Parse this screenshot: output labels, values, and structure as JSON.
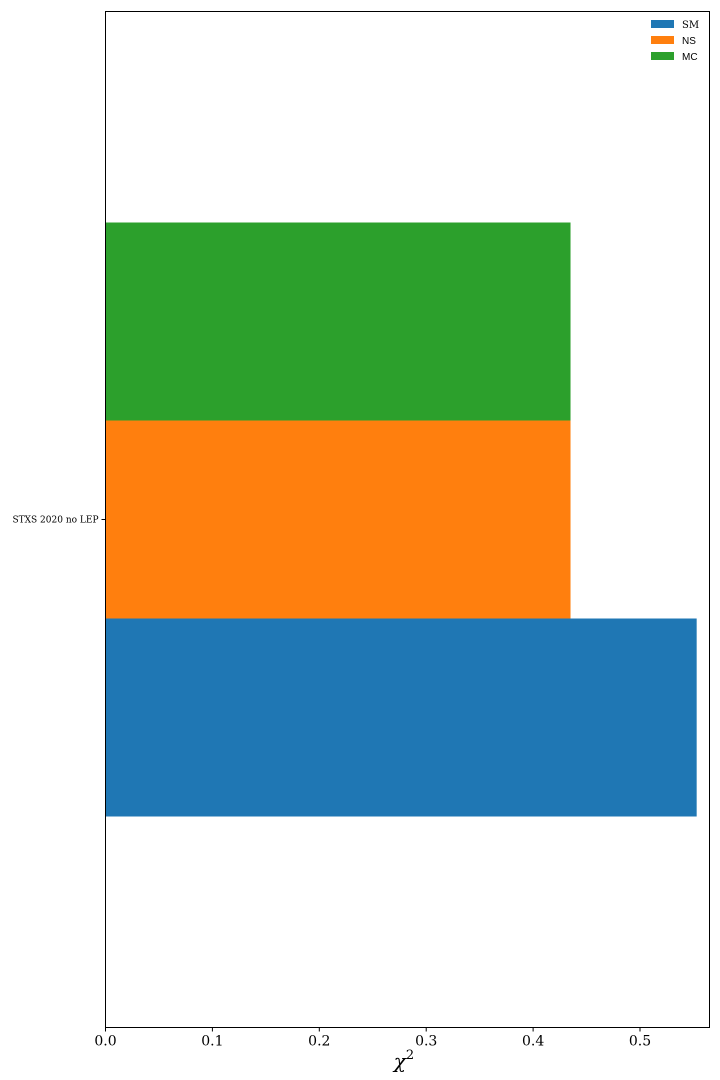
{
  "chart_data": {
    "type": "bar",
    "orientation": "horizontal",
    "categories": [
      "STXS_2020_no_LEP"
    ],
    "category_label": "STXS 2020 no LEP",
    "series": [
      {
        "name": "SM",
        "values": [
          0.553
        ],
        "color": "#1f77b4"
      },
      {
        "name": "NS",
        "values": [
          0.435
        ],
        "color": "#ff7f0e"
      },
      {
        "name": "MC",
        "values": [
          0.435
        ],
        "color": "#2ca02c"
      }
    ],
    "xlabel": "χ",
    "xlabel_superscript": "2",
    "xlim": [
      0,
      0.565
    ],
    "xticks": [
      0.0,
      0.1,
      0.2,
      0.3,
      0.4,
      0.5
    ],
    "xtick_labels": [
      "0.0",
      "0.1",
      "0.2",
      "0.3",
      "0.4",
      "0.5"
    ],
    "grid": false,
    "legend_position": "top-right"
  }
}
